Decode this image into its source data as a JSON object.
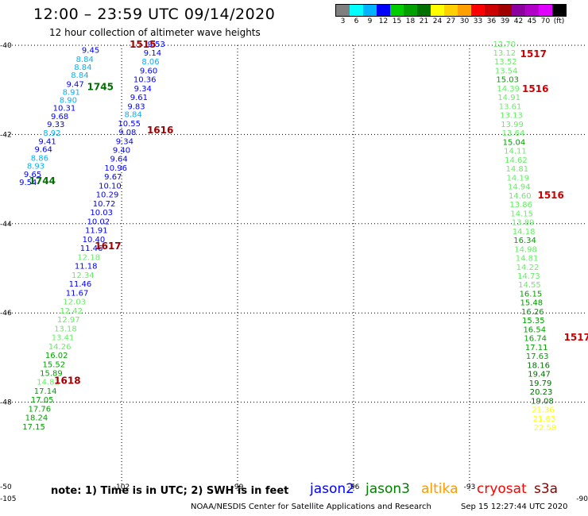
{
  "header": {
    "title": "12:00 – 23:59 UTC 09/14/2020",
    "subtitle": "12 hour collection of altimeter wave heights"
  },
  "colorbar": {
    "colors": [
      "#7f7f7f",
      "#00ffff",
      "#00b2ff",
      "#0000ff",
      "#00cc00",
      "#00a000",
      "#007000",
      "#ffff00",
      "#ffd000",
      "#ffa000",
      "#ff0000",
      "#cc0000",
      "#a00000",
      "#8c00a0",
      "#b000c8",
      "#e000ff",
      "#000000"
    ],
    "labels": [
      "3",
      "6",
      "9",
      "12",
      "15",
      "18",
      "21",
      "24",
      "27",
      "30",
      "33",
      "36",
      "39",
      "42",
      "45",
      "70",
      "(ft)"
    ]
  },
  "map": {
    "lon_ticks": [
      {
        "lon": -102,
        "label": "-102"
      },
      {
        "lon": -99,
        "label": "-99"
      },
      {
        "lon": -96,
        "label": "-96"
      },
      {
        "lon": -93,
        "label": "-93"
      }
    ],
    "lon_corner_left": "-105",
    "lon_corner_right": "-90",
    "lat_ticks": [
      {
        "lat": -40,
        "label": "-40"
      },
      {
        "lat": -42,
        "label": "-42"
      },
      {
        "lat": -44,
        "label": "-44"
      },
      {
        "lat": -46,
        "label": "-46"
      },
      {
        "lat": -48,
        "label": "-48"
      }
    ],
    "lat_corner_bottom": "-50"
  },
  "tracks": [
    {
      "points": [
        {
          "lon": -102.8,
          "lat": -40.1,
          "v": "9.45",
          "c": "#0000ff"
        },
        {
          "lon": -102.95,
          "lat": -40.3,
          "v": "8.84",
          "c": "#00b2ff"
        },
        {
          "lon": -103.0,
          "lat": -40.48,
          "v": "8.84",
          "c": "#00b2ff"
        },
        {
          "lon": -103.08,
          "lat": -40.66,
          "v": "8.84",
          "c": "#00b2ff"
        },
        {
          "lon": -103.2,
          "lat": -40.86,
          "v": "9.47",
          "c": "#0000ff"
        },
        {
          "lon": -103.3,
          "lat": -41.04,
          "v": "8.91",
          "c": "#00b2ff"
        },
        {
          "lon": -103.38,
          "lat": -41.22,
          "v": "8.90",
          "c": "#00b2ff"
        },
        {
          "lon": -103.48,
          "lat": -41.4,
          "v": "10.31",
          "c": "#0000ff"
        },
        {
          "lon": -103.6,
          "lat": -41.58,
          "v": "9.68",
          "c": "#0000ff"
        },
        {
          "lon": -103.7,
          "lat": -41.76,
          "v": "9.33",
          "c": "#0000ff"
        },
        {
          "lon": -103.8,
          "lat": -41.96,
          "v": "8.92",
          "c": "#00b2ff"
        },
        {
          "lon": -103.92,
          "lat": -42.14,
          "v": "9.41",
          "c": "#0000ff"
        },
        {
          "lon": -104.02,
          "lat": -42.32,
          "v": "9.64",
          "c": "#0000ff"
        },
        {
          "lon": -104.12,
          "lat": -42.52,
          "v": "8.86",
          "c": "#00b2ff"
        },
        {
          "lon": -104.22,
          "lat": -42.7,
          "v": "8.93",
          "c": "#00b2ff"
        },
        {
          "lon": -104.3,
          "lat": -42.88,
          "v": "9.65",
          "c": "#0000ff"
        },
        {
          "lon": -104.42,
          "lat": -43.06,
          "v": "9.54",
          "c": "#0000ff"
        }
      ]
    },
    {
      "points": [
        {
          "lon": -101.1,
          "lat": -39.96,
          "v": "9.53",
          "c": "#0000ff"
        },
        {
          "lon": -101.2,
          "lat": -40.16,
          "v": "9.14",
          "c": "#0000ff"
        },
        {
          "lon": -101.25,
          "lat": -40.36,
          "v": "8.06",
          "c": "#00b2ff"
        },
        {
          "lon": -101.3,
          "lat": -40.56,
          "v": "9.60",
          "c": "#0000ff"
        },
        {
          "lon": -101.4,
          "lat": -40.76,
          "v": "10.36",
          "c": "#0000ff"
        },
        {
          "lon": -101.45,
          "lat": -40.96,
          "v": "9.34",
          "c": "#0000ff"
        },
        {
          "lon": -101.55,
          "lat": -41.16,
          "v": "9.61",
          "c": "#0000ff"
        },
        {
          "lon": -101.62,
          "lat": -41.36,
          "v": "9.83",
          "c": "#0000ff"
        },
        {
          "lon": -101.7,
          "lat": -41.54,
          "v": "8.84",
          "c": "#00b2ff"
        },
        {
          "lon": -101.8,
          "lat": -41.74,
          "v": "10.55",
          "c": "#0000ff"
        },
        {
          "lon": -101.85,
          "lat": -41.94,
          "v": "9.08",
          "c": "#0000ff"
        },
        {
          "lon": -101.92,
          "lat": -42.14,
          "v": "9.34",
          "c": "#0000ff"
        },
        {
          "lon": -102.0,
          "lat": -42.34,
          "v": "9.40",
          "c": "#0000ff"
        },
        {
          "lon": -102.07,
          "lat": -42.54,
          "v": "9.64",
          "c": "#0000ff"
        },
        {
          "lon": -102.15,
          "lat": -42.74,
          "v": "10.96",
          "c": "#0000ff"
        },
        {
          "lon": -102.22,
          "lat": -42.94,
          "v": "9.67",
          "c": "#0000ff"
        },
        {
          "lon": -102.3,
          "lat": -43.14,
          "v": "10.10",
          "c": "#0000ff"
        },
        {
          "lon": -102.37,
          "lat": -43.34,
          "v": "10.29",
          "c": "#0000ff"
        },
        {
          "lon": -102.45,
          "lat": -43.54,
          "v": "10.72",
          "c": "#0000ff"
        },
        {
          "lon": -102.52,
          "lat": -43.74,
          "v": "10.03",
          "c": "#0000ff"
        },
        {
          "lon": -102.6,
          "lat": -43.94,
          "v": "10.02",
          "c": "#0000ff"
        },
        {
          "lon": -102.65,
          "lat": -44.14,
          "v": "11.91",
          "c": "#0000ff"
        },
        {
          "lon": -102.72,
          "lat": -44.34,
          "v": "10.40",
          "c": "#0000ff"
        },
        {
          "lon": -102.78,
          "lat": -44.54,
          "v": "11.46",
          "c": "#0000ff"
        },
        {
          "lon": -102.85,
          "lat": -44.74,
          "v": "12.18",
          "c": "#66ee66"
        },
        {
          "lon": -102.92,
          "lat": -44.94,
          "v": "11.18",
          "c": "#0000ff"
        },
        {
          "lon": -103.0,
          "lat": -45.14,
          "v": "12.34",
          "c": "#66ee66"
        },
        {
          "lon": -103.07,
          "lat": -45.34,
          "v": "11.46",
          "c": "#0000ff"
        },
        {
          "lon": -103.15,
          "lat": -45.54,
          "v": "11.67",
          "c": "#0000ff"
        },
        {
          "lon": -103.22,
          "lat": -45.74,
          "v": "12.03",
          "c": "#66ee66"
        },
        {
          "lon": -103.3,
          "lat": -45.94,
          "v": "12.42",
          "c": "#66ee66"
        },
        {
          "lon": -103.37,
          "lat": -46.14,
          "v": "12.97",
          "c": "#66ee66"
        },
        {
          "lon": -103.45,
          "lat": -46.34,
          "v": "13.18",
          "c": "#66ee66"
        },
        {
          "lon": -103.52,
          "lat": -46.54,
          "v": "13.41",
          "c": "#66ee66"
        },
        {
          "lon": -103.6,
          "lat": -46.74,
          "v": "14.26",
          "c": "#66ee66"
        },
        {
          "lon": -103.68,
          "lat": -46.94,
          "v": "16.02",
          "c": "#00a000"
        },
        {
          "lon": -103.75,
          "lat": -47.14,
          "v": "15.52",
          "c": "#00a000"
        },
        {
          "lon": -103.82,
          "lat": -47.34,
          "v": "15.89",
          "c": "#00a000"
        },
        {
          "lon": -103.9,
          "lat": -47.54,
          "v": "14.82",
          "c": "#66ee66"
        },
        {
          "lon": -103.97,
          "lat": -47.74,
          "v": "17.14",
          "c": "#00a000"
        },
        {
          "lon": -104.05,
          "lat": -47.94,
          "v": "17.05",
          "c": "#00a000"
        },
        {
          "lon": -104.12,
          "lat": -48.14,
          "v": "17.76",
          "c": "#00a000"
        },
        {
          "lon": -104.2,
          "lat": -48.34,
          "v": "18.24",
          "c": "#00a000"
        },
        {
          "lon": -104.27,
          "lat": -48.54,
          "v": "17.15",
          "c": "#00a000"
        }
      ]
    },
    {
      "points": [
        {
          "lon": -92.1,
          "lat": -39.96,
          "v": "12.70",
          "c": "#66ee66"
        },
        {
          "lon": -92.1,
          "lat": -40.16,
          "v": "13.12",
          "c": "#66ee66"
        },
        {
          "lon": -92.07,
          "lat": -40.36,
          "v": "13.52",
          "c": "#66ee66"
        },
        {
          "lon": -92.05,
          "lat": -40.56,
          "v": "13.54",
          "c": "#66ee66"
        },
        {
          "lon": -92.02,
          "lat": -40.76,
          "v": "15.03",
          "c": "#00a000"
        },
        {
          "lon": -92.0,
          "lat": -40.96,
          "v": "14.39",
          "c": "#66ee66"
        },
        {
          "lon": -91.98,
          "lat": -41.16,
          "v": "14.91",
          "c": "#66ee66"
        },
        {
          "lon": -91.95,
          "lat": -41.36,
          "v": "13.61",
          "c": "#66ee66"
        },
        {
          "lon": -91.92,
          "lat": -41.56,
          "v": "13.13",
          "c": "#66ee66"
        },
        {
          "lon": -91.9,
          "lat": -41.76,
          "v": "13.99",
          "c": "#66ee66"
        },
        {
          "lon": -91.87,
          "lat": -41.96,
          "v": "13.64",
          "c": "#66ee66"
        },
        {
          "lon": -91.85,
          "lat": -42.16,
          "v": "15.04",
          "c": "#00a000"
        },
        {
          "lon": -91.82,
          "lat": -42.36,
          "v": "14.11",
          "c": "#66ee66"
        },
        {
          "lon": -91.8,
          "lat": -42.56,
          "v": "14.62",
          "c": "#66ee66"
        },
        {
          "lon": -91.77,
          "lat": -42.76,
          "v": "14.81",
          "c": "#66ee66"
        },
        {
          "lon": -91.75,
          "lat": -42.96,
          "v": "14.19",
          "c": "#66ee66"
        },
        {
          "lon": -91.72,
          "lat": -43.16,
          "v": "14.94",
          "c": "#66ee66"
        },
        {
          "lon": -91.7,
          "lat": -43.36,
          "v": "14.60",
          "c": "#66ee66"
        },
        {
          "lon": -91.67,
          "lat": -43.56,
          "v": "13.86",
          "c": "#66ee66"
        },
        {
          "lon": -91.65,
          "lat": -43.76,
          "v": "14.15",
          "c": "#66ee66"
        },
        {
          "lon": -91.62,
          "lat": -43.96,
          "v": "13.89",
          "c": "#66ee66"
        },
        {
          "lon": -91.6,
          "lat": -44.16,
          "v": "14.18",
          "c": "#66ee66"
        },
        {
          "lon": -91.57,
          "lat": -44.36,
          "v": "16.34",
          "c": "#00a000"
        },
        {
          "lon": -91.55,
          "lat": -44.56,
          "v": "14.98",
          "c": "#66ee66"
        },
        {
          "lon": -91.52,
          "lat": -44.76,
          "v": "14.81",
          "c": "#66ee66"
        },
        {
          "lon": -91.5,
          "lat": -44.96,
          "v": "14.22",
          "c": "#66ee66"
        },
        {
          "lon": -91.47,
          "lat": -45.16,
          "v": "14.73",
          "c": "#66ee66"
        },
        {
          "lon": -91.45,
          "lat": -45.36,
          "v": "14.55",
          "c": "#66ee66"
        },
        {
          "lon": -91.42,
          "lat": -45.56,
          "v": "16.15",
          "c": "#00a000"
        },
        {
          "lon": -91.4,
          "lat": -45.76,
          "v": "15.48",
          "c": "#00a000"
        },
        {
          "lon": -91.37,
          "lat": -45.96,
          "v": "16.26",
          "c": "#00a000"
        },
        {
          "lon": -91.35,
          "lat": -46.16,
          "v": "15.35",
          "c": "#00a000"
        },
        {
          "lon": -91.32,
          "lat": -46.36,
          "v": "16.54",
          "c": "#00a000"
        },
        {
          "lon": -91.3,
          "lat": -46.56,
          "v": "16.74",
          "c": "#00a000"
        },
        {
          "lon": -91.27,
          "lat": -46.76,
          "v": "17.11",
          "c": "#00a000"
        },
        {
          "lon": -91.25,
          "lat": -46.96,
          "v": "17.63",
          "c": "#00a000"
        },
        {
          "lon": -91.22,
          "lat": -47.16,
          "v": "18.16",
          "c": "#007000"
        },
        {
          "lon": -91.2,
          "lat": -47.36,
          "v": "19.47",
          "c": "#007000"
        },
        {
          "lon": -91.17,
          "lat": -47.56,
          "v": "19.79",
          "c": "#007000"
        },
        {
          "lon": -91.15,
          "lat": -47.76,
          "v": "20.23",
          "c": "#007000"
        },
        {
          "lon": -91.12,
          "lat": -47.96,
          "v": "19.08",
          "c": "#007000"
        },
        {
          "lon": -91.1,
          "lat": -48.16,
          "v": "21.36",
          "c": "#ffff00"
        },
        {
          "lon": -91.07,
          "lat": -48.36,
          "v": "21.63",
          "c": "#ffff00"
        },
        {
          "lon": -91.05,
          "lat": -48.56,
          "v": "22.58",
          "c": "#ffff00"
        }
      ]
    }
  ],
  "time_labels": [
    {
      "lon": -101.45,
      "lat": -39.98,
      "t": "1515",
      "c": "#a00000"
    },
    {
      "lon": -102.55,
      "lat": -40.93,
      "t": "1745",
      "c": "#007000"
    },
    {
      "lon": -101.0,
      "lat": -41.9,
      "t": "1616",
      "c": "#a00000"
    },
    {
      "lon": -104.05,
      "lat": -43.04,
      "t": "1744",
      "c": "#007000"
    },
    {
      "lon": -102.35,
      "lat": -44.5,
      "t": "1617",
      "c": "#a00000"
    },
    {
      "lon": -103.4,
      "lat": -47.52,
      "t": "1618",
      "c": "#a00000"
    },
    {
      "lon": -91.35,
      "lat": -40.2,
      "t": "1517",
      "c": "#cc0000"
    },
    {
      "lon": -91.3,
      "lat": -40.98,
      "t": "1516",
      "c": "#cc0000"
    },
    {
      "lon": -90.9,
      "lat": -43.36,
      "t": "1516",
      "c": "#cc0000"
    },
    {
      "lon": -90.22,
      "lat": -46.55,
      "t": "1517",
      "c": "#cc0000"
    }
  ],
  "footer": {
    "note": "note: 1) Time is in UTC; 2) SWH is in feet",
    "satellites": [
      {
        "name": "jason2",
        "color": "#0000ff"
      },
      {
        "name": "jason3",
        "color": "#008000"
      },
      {
        "name": "altika",
        "color": "#ff9900"
      },
      {
        "name": "cryosat",
        "color": "#ff0000"
      },
      {
        "name": "s3a",
        "color": "#8b0000"
      }
    ],
    "credit": "NOAA/NESDIS Center for Satellite Applications and Research",
    "timestamp": "Sep 15 12:27:44 UTC 2020"
  }
}
